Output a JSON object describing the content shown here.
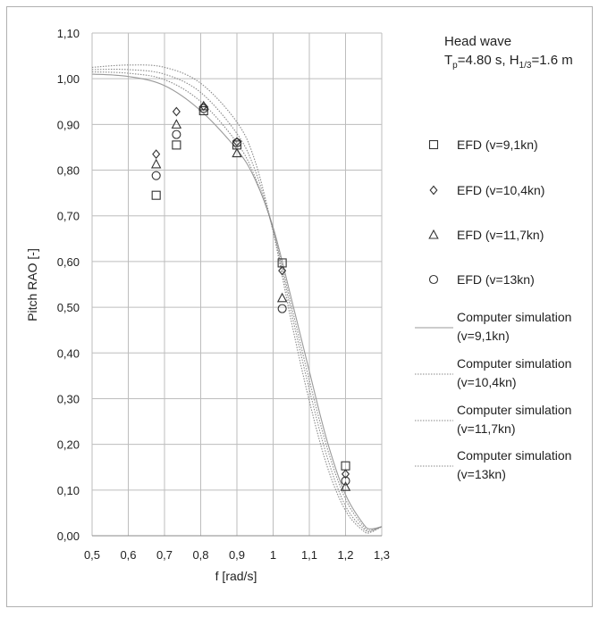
{
  "chart_data": {
    "type": "scatter",
    "xlabel": "f [rad/s]",
    "ylabel": "Pitch RAO [-]",
    "xlim": [
      0.5,
      1.3
    ],
    "ylim": [
      0.0,
      1.1
    ],
    "x_ticks": [
      "0,5",
      "0,6",
      "0,7",
      "0,8",
      "0,9",
      "1",
      "1,1",
      "1,2",
      "1,3"
    ],
    "y_ticks": [
      "0,00",
      "0,10",
      "0,20",
      "0,30",
      "0,40",
      "0,50",
      "0,60",
      "0,70",
      "0,80",
      "0,90",
      "1,00",
      "1,10"
    ],
    "grid": true,
    "annotation": {
      "line1": "Head wave",
      "line2_parts": [
        "T",
        "p",
        "=4.80 s, H",
        "1/3",
        "=1.6 m"
      ]
    },
    "legend_position": "right",
    "marker_series": [
      {
        "name": "EFD (v=9,1kn)",
        "marker": "square",
        "points": [
          [
            0.677,
            0.745
          ],
          [
            0.733,
            0.855
          ],
          [
            0.808,
            0.93
          ],
          [
            0.9,
            0.855
          ],
          [
            1.025,
            0.597
          ],
          [
            1.2,
            0.153
          ]
        ]
      },
      {
        "name": "EFD (v=10,4kn)",
        "marker": "diamond",
        "points": [
          [
            0.677,
            0.835
          ],
          [
            0.733,
            0.928
          ],
          [
            0.808,
            0.94
          ],
          [
            0.9,
            0.862
          ],
          [
            1.025,
            0.58
          ],
          [
            1.2,
            0.135
          ]
        ]
      },
      {
        "name": "EFD (v=11,7kn)",
        "marker": "triangle",
        "points": [
          [
            0.677,
            0.813
          ],
          [
            0.733,
            0.9
          ],
          [
            0.808,
            0.94
          ],
          [
            0.9,
            0.837
          ],
          [
            1.025,
            0.52
          ],
          [
            1.2,
            0.107
          ]
        ]
      },
      {
        "name": "EFD (v=13kn)",
        "marker": "circle",
        "points": [
          [
            0.677,
            0.788
          ],
          [
            0.733,
            0.878
          ],
          [
            0.808,
            0.935
          ],
          [
            0.9,
            0.86
          ],
          [
            1.025,
            0.497
          ],
          [
            1.2,
            0.12
          ]
        ]
      }
    ],
    "line_series": [
      {
        "name_line1": "Computer simulation",
        "name_line2": "(v=9,1kn)",
        "style": "solid",
        "color": "#9a9a9a",
        "points": [
          [
            0.5,
            1.01
          ],
          [
            0.6,
            1.005
          ],
          [
            0.7,
            0.985
          ],
          [
            0.8,
            0.93
          ],
          [
            0.9,
            0.845
          ],
          [
            0.95,
            0.78
          ],
          [
            1.0,
            0.675
          ],
          [
            1.05,
            0.52
          ],
          [
            1.1,
            0.36
          ],
          [
            1.15,
            0.205
          ],
          [
            1.2,
            0.09
          ],
          [
            1.25,
            0.025
          ],
          [
            1.27,
            0.015
          ],
          [
            1.3,
            0.02
          ]
        ]
      },
      {
        "name_line1": "Computer simulation",
        "name_line2": "(v=10,4kn)",
        "style": "dotted",
        "color": "#8a8a8a",
        "points": [
          [
            0.5,
            1.015
          ],
          [
            0.6,
            1.012
          ],
          [
            0.7,
            0.998
          ],
          [
            0.8,
            0.95
          ],
          [
            0.9,
            0.86
          ],
          [
            0.95,
            0.785
          ],
          [
            1.0,
            0.67
          ],
          [
            1.05,
            0.505
          ],
          [
            1.1,
            0.34
          ],
          [
            1.15,
            0.19
          ],
          [
            1.2,
            0.08
          ],
          [
            1.25,
            0.02
          ],
          [
            1.27,
            0.012
          ],
          [
            1.3,
            0.02
          ]
        ]
      },
      {
        "name_line1": "Computer simulation",
        "name_line2": "(v=11,7kn)",
        "style": "dotted",
        "color": "#8a8a8a",
        "points": [
          [
            0.5,
            1.02
          ],
          [
            0.6,
            1.02
          ],
          [
            0.7,
            1.01
          ],
          [
            0.8,
            0.97
          ],
          [
            0.9,
            0.88
          ],
          [
            0.95,
            0.8
          ],
          [
            1.0,
            0.668
          ],
          [
            1.05,
            0.49
          ],
          [
            1.1,
            0.32
          ],
          [
            1.15,
            0.17
          ],
          [
            1.2,
            0.065
          ],
          [
            1.25,
            0.015
          ],
          [
            1.27,
            0.01
          ],
          [
            1.3,
            0.02
          ]
        ]
      },
      {
        "name_line1": "Computer simulation",
        "name_line2": "(v=13kn)",
        "style": "dotted",
        "color": "#8a8a8a",
        "points": [
          [
            0.5,
            1.025
          ],
          [
            0.6,
            1.03
          ],
          [
            0.7,
            1.025
          ],
          [
            0.8,
            0.99
          ],
          [
            0.9,
            0.905
          ],
          [
            0.95,
            0.82
          ],
          [
            1.0,
            0.665
          ],
          [
            1.05,
            0.47
          ],
          [
            1.1,
            0.295
          ],
          [
            1.15,
            0.15
          ],
          [
            1.2,
            0.055
          ],
          [
            1.25,
            0.01
          ],
          [
            1.27,
            0.008
          ],
          [
            1.3,
            0.02
          ]
        ]
      }
    ]
  }
}
